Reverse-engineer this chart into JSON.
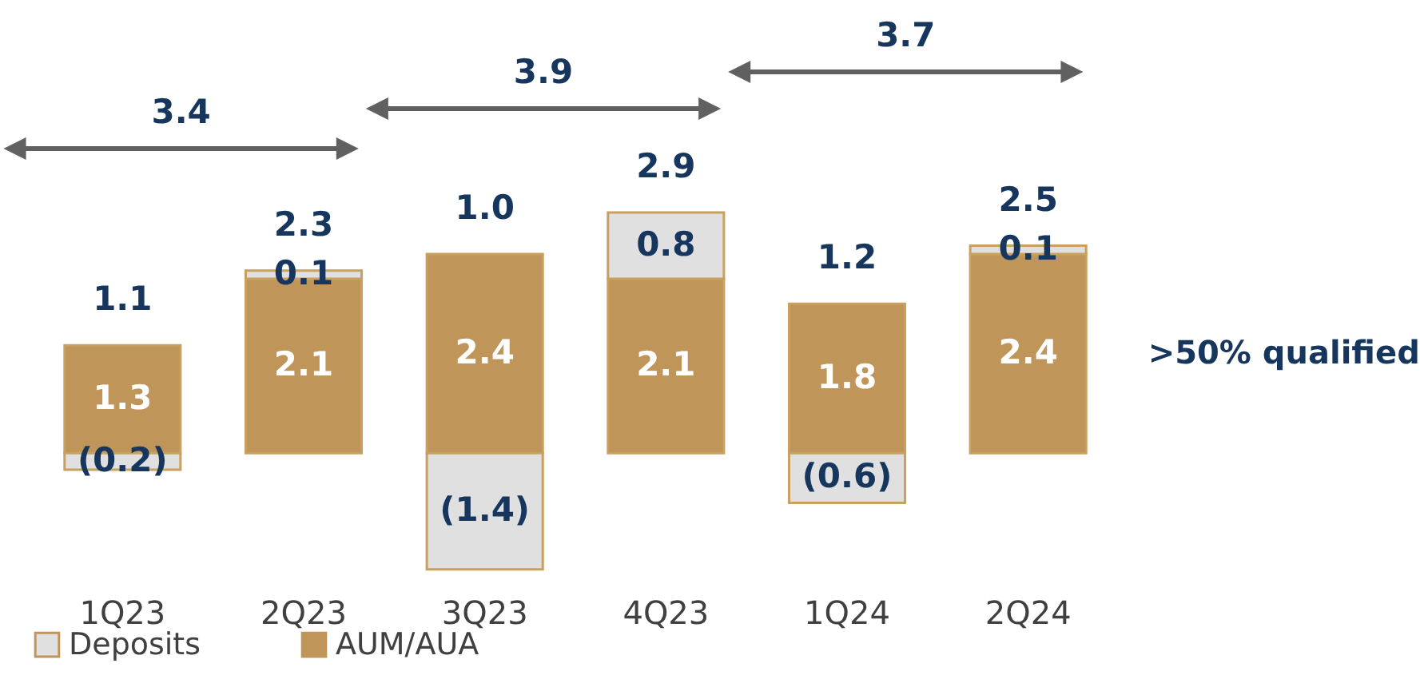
{
  "chart_data": {
    "type": "bar",
    "stacked": true,
    "categories": [
      "1Q23",
      "2Q23",
      "3Q23",
      "4Q23",
      "1Q24",
      "2Q24"
    ],
    "series": [
      {
        "name": "AUM/AUA",
        "color": "#bf955a",
        "values": [
          1.3,
          2.1,
          2.4,
          2.1,
          1.8,
          2.4
        ],
        "value_labels": [
          "1.3",
          "2.1",
          "2.4",
          "2.1",
          "1.8",
          "2.4"
        ]
      },
      {
        "name": "Deposits",
        "color": "#e0e0e0",
        "values": [
          -0.2,
          0.1,
          -1.4,
          0.8,
          -0.6,
          0.1
        ],
        "value_labels": [
          "(0.2)",
          "0.1",
          "(1.4)",
          "0.8",
          "(0.6)",
          "0.1"
        ]
      }
    ],
    "totals": [
      "1.1",
      "2.3",
      "1.0",
      "2.9",
      "1.2",
      "2.5"
    ],
    "annotations": [
      "3.4",
      "3.9",
      "3.7",
      ">50% qualified"
    ],
    "legend": "bottom",
    "grid": false,
    "tick_labels": "x"
  }
}
